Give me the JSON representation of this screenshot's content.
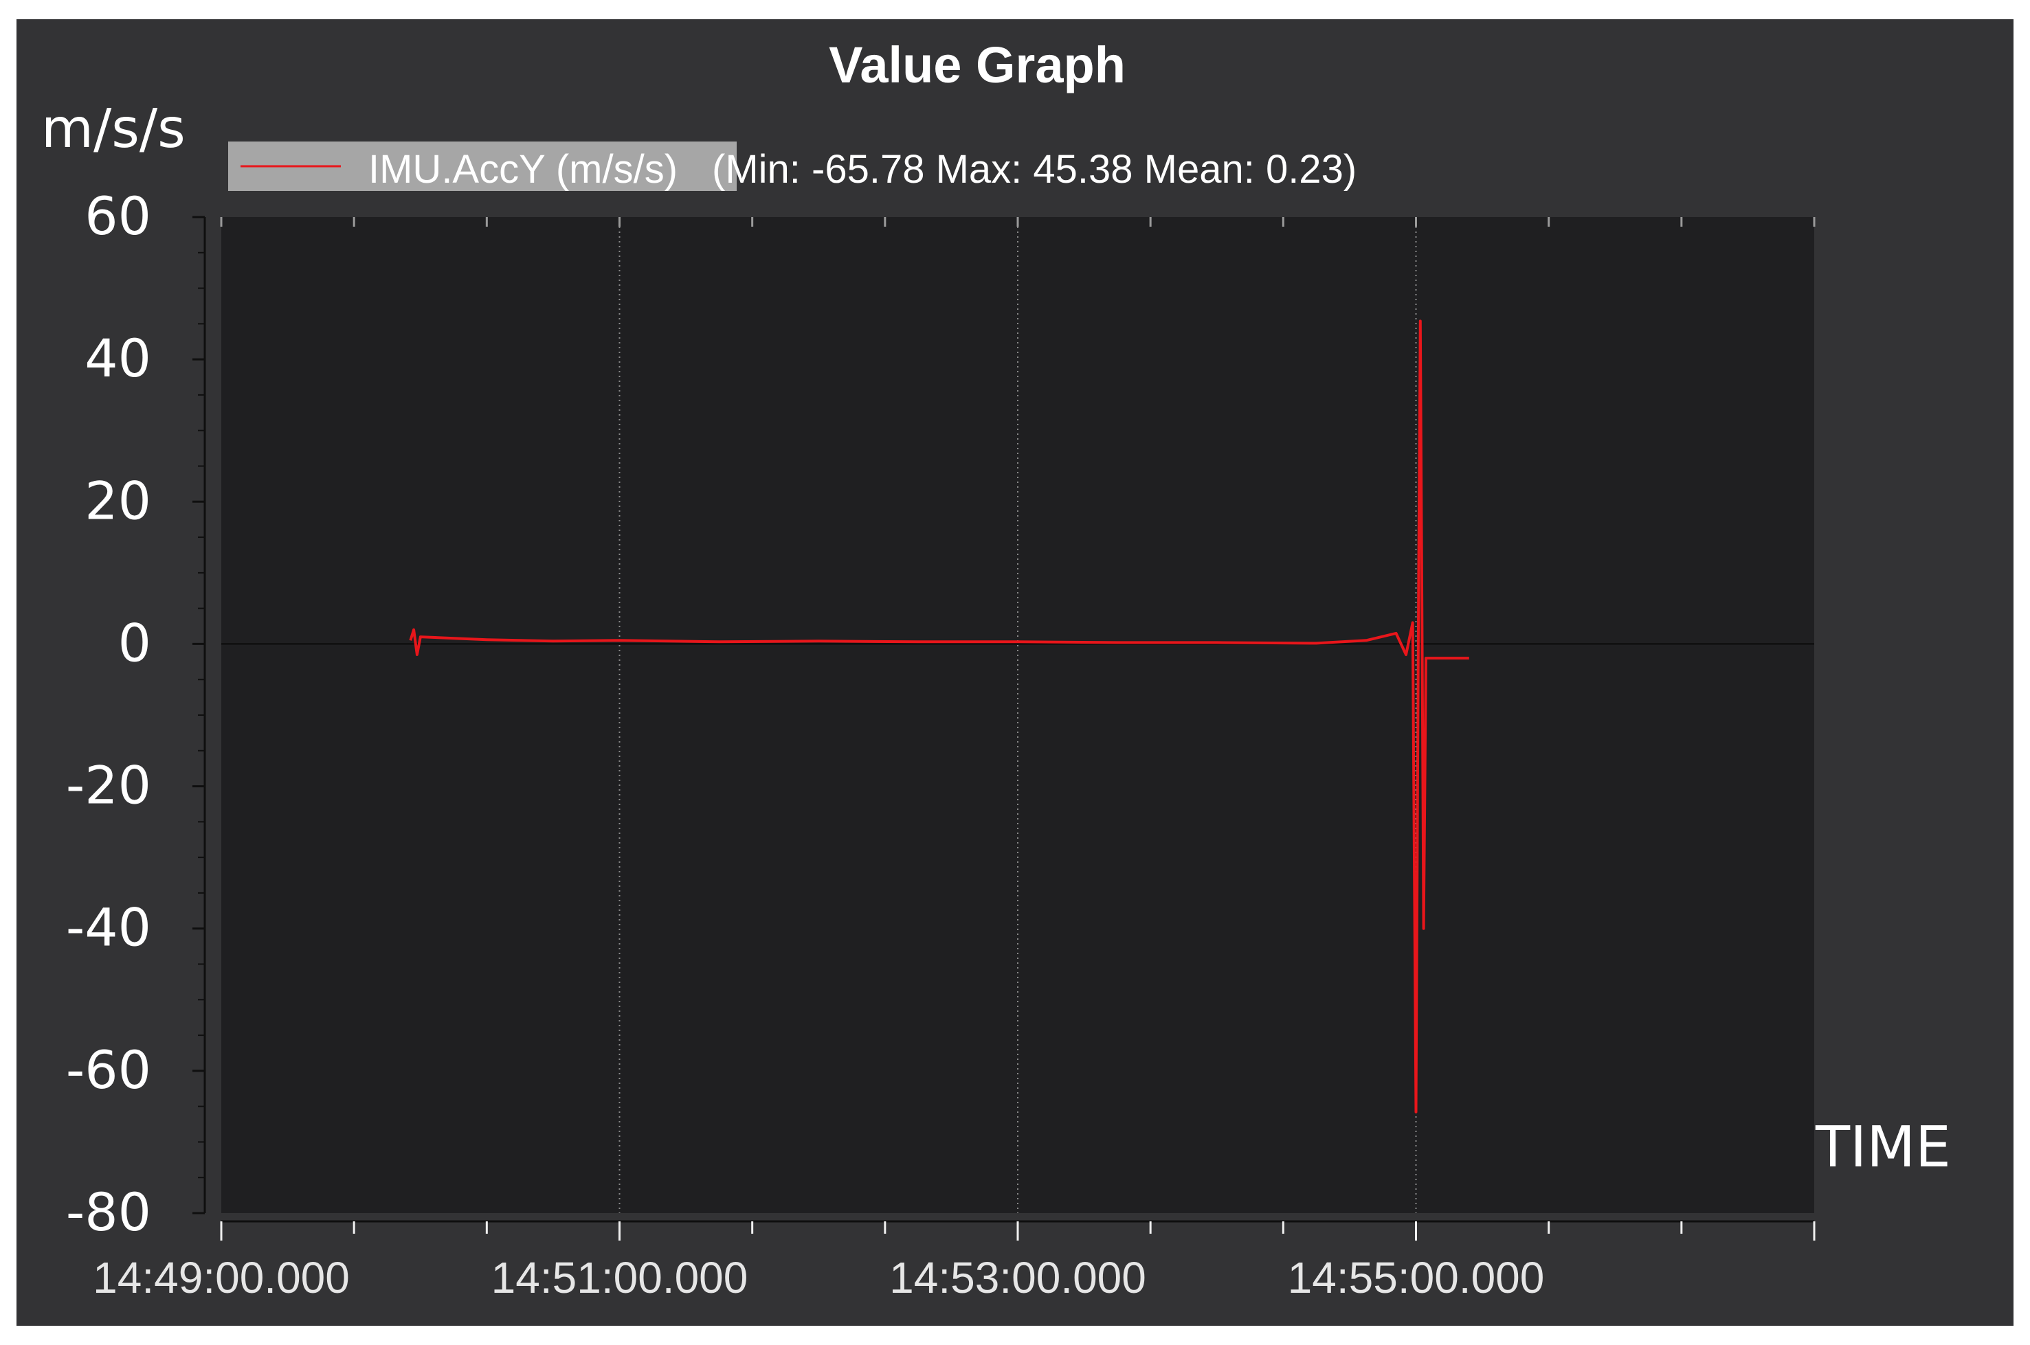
{
  "window": {
    "title": "Value Graph"
  },
  "chart_data": {
    "type": "line",
    "title": "Value Graph",
    "ylabel": "m/s/s",
    "xlabel": "TIME",
    "ylim": [
      -80,
      60
    ],
    "xlim": [
      "14:49:00.000",
      "14:57:00.000"
    ],
    "y_ticks": [
      "60",
      "40",
      "20",
      "0",
      "-20",
      "-40",
      "-60",
      "-80"
    ],
    "x_ticks": [
      "14:49:00.000",
      "14:51:00.000",
      "14:53:00.000",
      "14:55:00.000"
    ],
    "grid": "vertical dotted at major x ticks",
    "legend": {
      "position": "top-left",
      "label": "IMU.AccY (m/s/s)",
      "stats": " (Min: -65.78 Max: 45.38 Mean: 0.23)"
    },
    "series": [
      {
        "name": "IMU.AccY (m/s/s)",
        "color": "#e8161b",
        "x": [
          "14:49:57.000",
          "14:49:58.000",
          "14:49:59.000",
          "14:50:00.000",
          "14:50:20.000",
          "14:50:40.000",
          "14:51:00.000",
          "14:51:30.000",
          "14:52:00.000",
          "14:52:30.000",
          "14:53:00.000",
          "14:53:30.000",
          "14:54:00.000",
          "14:54:30.000",
          "14:54:45.000",
          "14:54:54.000",
          "14:54:57.000",
          "14:54:59.000",
          "14:55:00.000",
          "14:55:00.800",
          "14:55:01.300",
          "14:55:01.800",
          "14:55:02.300",
          "14:55:03.000",
          "14:55:05.000",
          "14:55:10.000",
          "14:55:16.000"
        ],
        "y": [
          0.5,
          2.0,
          -1.5,
          1.0,
          0.6,
          0.4,
          0.5,
          0.3,
          0.4,
          0.3,
          0.3,
          0.2,
          0.2,
          0.1,
          0.5,
          1.5,
          -1.5,
          3.0,
          -65.78,
          10.0,
          45.38,
          5.0,
          -40.0,
          -2.0,
          -2.0,
          -2.0,
          -2.0
        ],
        "stats": {
          "min": -65.78,
          "max": 45.38,
          "mean": 0.23
        }
      }
    ]
  }
}
